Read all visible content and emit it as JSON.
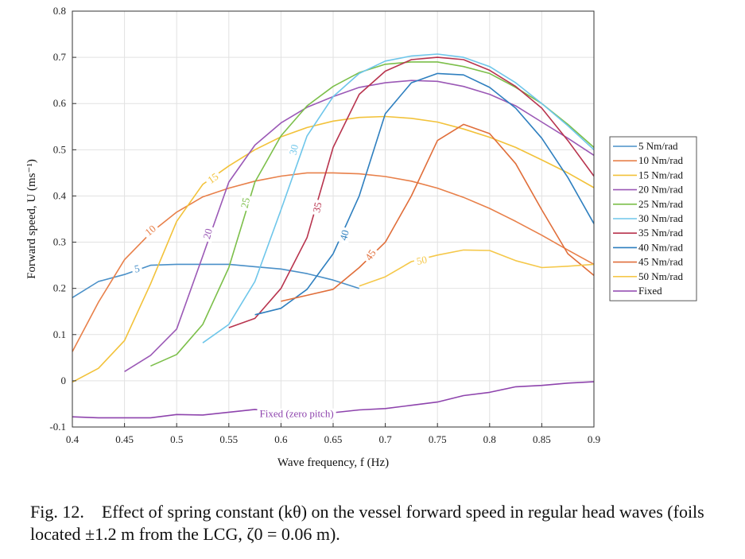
{
  "chart_data": {
    "type": "line",
    "xlabel": "Wave frequency, f (Hz)",
    "ylabel": "Forward speed, U (ms⁻¹)",
    "xlim": [
      0.4,
      0.9
    ],
    "ylim": [
      -0.1,
      0.8
    ],
    "xticks": [
      0.4,
      0.45,
      0.5,
      0.55,
      0.6,
      0.65,
      0.7,
      0.75,
      0.8,
      0.85,
      0.9
    ],
    "xtick_labels": [
      "0.4",
      "0.45",
      "0.5",
      "0.55",
      "0.6",
      "0.65",
      "0.7",
      "0.75",
      "0.8",
      "0.85",
      "0.9"
    ],
    "yticks": [
      -0.1,
      0,
      0.1,
      0.2,
      0.3,
      0.4,
      0.5,
      0.6,
      0.7,
      0.8
    ],
    "ytick_labels": [
      "-0.1",
      "0",
      "0.1",
      "0.2",
      "0.3",
      "0.4",
      "0.5",
      "0.6",
      "0.7",
      "0.8"
    ],
    "grid": true,
    "legend_position": "right",
    "series": [
      {
        "name": "5 Nm/rad",
        "inline_label": "5",
        "color": "#4a90c8",
        "x": [
          0.4,
          0.425,
          0.45,
          0.475,
          0.5,
          0.525,
          0.55,
          0.575,
          0.6,
          0.625,
          0.65,
          0.675
        ],
        "y": [
          0.18,
          0.215,
          0.23,
          0.25,
          0.252,
          0.252,
          0.252,
          0.247,
          0.242,
          0.232,
          0.218,
          0.2
        ]
      },
      {
        "name": "10 Nm/rad",
        "inline_label": "10",
        "color": "#e8804a",
        "x": [
          0.4,
          0.425,
          0.45,
          0.475,
          0.5,
          0.525,
          0.55,
          0.575,
          0.6,
          0.625,
          0.65,
          0.675,
          0.7,
          0.725,
          0.75,
          0.775,
          0.8,
          0.825,
          0.85,
          0.875,
          0.9
        ],
        "y": [
          0.063,
          0.17,
          0.262,
          0.32,
          0.365,
          0.398,
          0.417,
          0.432,
          0.443,
          0.45,
          0.45,
          0.448,
          0.442,
          0.432,
          0.417,
          0.397,
          0.373,
          0.345,
          0.315,
          0.283,
          0.252
        ]
      },
      {
        "name": "15 Nm/rad",
        "inline_label": "15",
        "color": "#f2c23a",
        "x": [
          0.4,
          0.425,
          0.45,
          0.475,
          0.5,
          0.525,
          0.55,
          0.575,
          0.6,
          0.625,
          0.65,
          0.675,
          0.7,
          0.725,
          0.75,
          0.775,
          0.8,
          0.825,
          0.85,
          0.875,
          0.9
        ],
        "y": [
          -0.003,
          0.027,
          0.087,
          0.21,
          0.345,
          0.425,
          0.465,
          0.5,
          0.528,
          0.548,
          0.562,
          0.57,
          0.572,
          0.568,
          0.56,
          0.545,
          0.527,
          0.505,
          0.478,
          0.45,
          0.418
        ]
      },
      {
        "name": "20 Nm/rad",
        "inline_label": "20",
        "color": "#9b59b6",
        "x": [
          0.45,
          0.475,
          0.5,
          0.525,
          0.55,
          0.575,
          0.6,
          0.625,
          0.65,
          0.675,
          0.7,
          0.725,
          0.75,
          0.775,
          0.8,
          0.825,
          0.85,
          0.875,
          0.9
        ],
        "y": [
          0.02,
          0.055,
          0.112,
          0.27,
          0.43,
          0.51,
          0.558,
          0.592,
          0.615,
          0.635,
          0.645,
          0.65,
          0.648,
          0.637,
          0.62,
          0.595,
          0.56,
          0.525,
          0.488
        ]
      },
      {
        "name": "25 Nm/rad",
        "inline_label": "25",
        "color": "#7cbf4a",
        "x": [
          0.475,
          0.5,
          0.525,
          0.55,
          0.575,
          0.6,
          0.625,
          0.65,
          0.675,
          0.7,
          0.725,
          0.75,
          0.775,
          0.8,
          0.825,
          0.85,
          0.875,
          0.9
        ],
        "y": [
          0.032,
          0.057,
          0.122,
          0.245,
          0.43,
          0.53,
          0.595,
          0.637,
          0.667,
          0.685,
          0.69,
          0.69,
          0.68,
          0.665,
          0.635,
          0.6,
          0.555,
          0.505
        ]
      },
      {
        "name": "30 Nm/rad",
        "inline_label": "30",
        "color": "#6ec6ea",
        "x": [
          0.525,
          0.55,
          0.575,
          0.6,
          0.625,
          0.65,
          0.675,
          0.7,
          0.725,
          0.75,
          0.775,
          0.8,
          0.825,
          0.85,
          0.875,
          0.9
        ],
        "y": [
          0.082,
          0.122,
          0.215,
          0.37,
          0.53,
          0.615,
          0.665,
          0.692,
          0.703,
          0.707,
          0.7,
          0.68,
          0.645,
          0.6,
          0.552,
          0.5
        ]
      },
      {
        "name": "35 Nm/rad",
        "inline_label": "35",
        "color": "#b8344e",
        "x": [
          0.55,
          0.575,
          0.6,
          0.625,
          0.65,
          0.675,
          0.7,
          0.725,
          0.75,
          0.775,
          0.8,
          0.825,
          0.85,
          0.875,
          0.9
        ],
        "y": [
          0.115,
          0.135,
          0.2,
          0.31,
          0.505,
          0.62,
          0.67,
          0.695,
          0.7,
          0.695,
          0.672,
          0.637,
          0.59,
          0.52,
          0.443
        ]
      },
      {
        "name": "40 Nm/rad",
        "inline_label": "40",
        "color": "#2e7fbf",
        "x": [
          0.575,
          0.6,
          0.625,
          0.65,
          0.675,
          0.7,
          0.725,
          0.75,
          0.775,
          0.8,
          0.825,
          0.85,
          0.875,
          0.9
        ],
        "y": [
          0.143,
          0.157,
          0.198,
          0.275,
          0.4,
          0.578,
          0.645,
          0.665,
          0.662,
          0.635,
          0.59,
          0.525,
          0.44,
          0.34
        ]
      },
      {
        "name": "45 Nm/rad",
        "inline_label": "45",
        "color": "#e06e3a",
        "x": [
          0.6,
          0.625,
          0.65,
          0.675,
          0.7,
          0.725,
          0.75,
          0.775,
          0.8,
          0.825,
          0.85,
          0.875,
          0.9
        ],
        "y": [
          0.172,
          0.185,
          0.198,
          0.245,
          0.3,
          0.4,
          0.52,
          0.555,
          0.535,
          0.47,
          0.37,
          0.275,
          0.228
        ]
      },
      {
        "name": "50 Nm/rad",
        "inline_label": "50",
        "color": "#f5c84a",
        "x": [
          0.675,
          0.7,
          0.725,
          0.75,
          0.775,
          0.8,
          0.825,
          0.85,
          0.875,
          0.9
        ],
        "y": [
          0.205,
          0.225,
          0.258,
          0.272,
          0.283,
          0.282,
          0.26,
          0.245,
          0.248,
          0.252
        ]
      },
      {
        "name": "Fixed",
        "inline_label": "Fixed (zero pitch)",
        "color": "#8e44ad",
        "x": [
          0.4,
          0.425,
          0.45,
          0.475,
          0.5,
          0.525,
          0.55,
          0.575,
          0.6,
          0.625,
          0.65,
          0.675,
          0.7,
          0.725,
          0.75,
          0.775,
          0.8,
          0.825,
          0.85,
          0.875,
          0.9
        ],
        "y": [
          -0.078,
          -0.08,
          -0.08,
          -0.08,
          -0.073,
          -0.074,
          -0.068,
          -0.062,
          -0.068,
          -0.069,
          -0.069,
          -0.063,
          -0.06,
          -0.053,
          -0.046,
          -0.032,
          -0.025,
          -0.013,
          -0.01,
          -0.005,
          -0.002
        ]
      }
    ],
    "inline_label_positions": [
      {
        "series": 0,
        "x": 0.462,
        "y": 0.242,
        "rotate": -10
      },
      {
        "series": 1,
        "x": 0.475,
        "y": 0.325,
        "rotate": -40
      },
      {
        "series": 2,
        "x": 0.535,
        "y": 0.438,
        "rotate": -35
      },
      {
        "series": 3,
        "x": 0.53,
        "y": 0.318,
        "rotate": -75
      },
      {
        "series": 4,
        "x": 0.566,
        "y": 0.385,
        "rotate": -78
      },
      {
        "series": 5,
        "x": 0.6125,
        "y": 0.5,
        "rotate": -78
      },
      {
        "series": 6,
        "x": 0.635,
        "y": 0.375,
        "rotate": -78
      },
      {
        "series": 7,
        "x": 0.661,
        "y": 0.315,
        "rotate": -75
      },
      {
        "series": 8,
        "x": 0.686,
        "y": 0.272,
        "rotate": -55
      },
      {
        "series": 9,
        "x": 0.735,
        "y": 0.26,
        "rotate": -12
      },
      {
        "series": 10,
        "x": 0.615,
        "y": -0.072,
        "rotate": 0
      }
    ]
  },
  "caption": {
    "text": "Fig. 12. Effect of spring constant (kθ) on the vessel forward speed in regular head waves (foils located ±1.2 m from the LCG, ζ0 = 0.06 m)."
  }
}
